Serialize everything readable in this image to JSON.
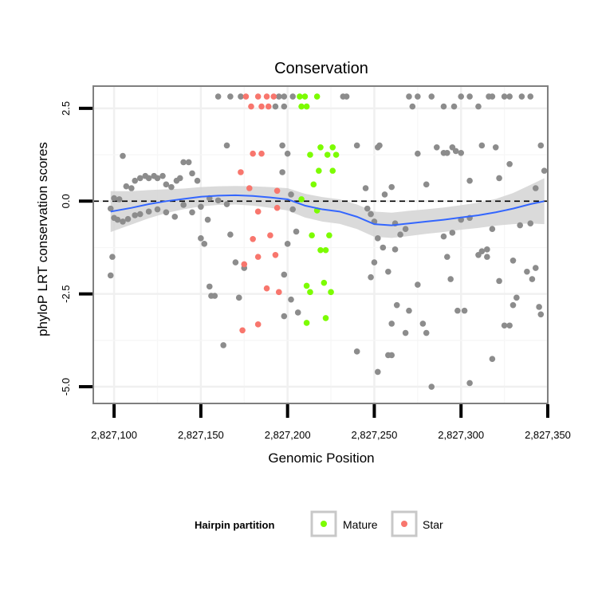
{
  "chart_data": {
    "type": "scatter",
    "title": "Conservation",
    "xlabel": "Genomic Position",
    "ylabel": "phyloP LRT conservation scores",
    "xlim": [
      2827088,
      2827350
    ],
    "ylim": [
      -5.45,
      3.1
    ],
    "x_ticks": [
      2827100,
      2827150,
      2827200,
      2827250,
      2827300,
      2827350
    ],
    "x_tick_labels": [
      "2,827,100",
      "2,827,150",
      "2,827,200",
      "2,827,250",
      "2,827,300",
      "2,827,350"
    ],
    "y_ticks": [
      -5,
      -2.5,
      0,
      2.5
    ],
    "y_tick_labels": [
      "-5.0",
      "-2.5",
      "0.0",
      "2.5"
    ],
    "reference_line_y": 0,
    "legend": {
      "title": "Hairpin partition",
      "position": "bottom",
      "entries": [
        {
          "label": "Mature",
          "color": "#7CFC00"
        },
        {
          "label": "Star",
          "color": "#F8766D"
        }
      ]
    },
    "colors": {
      "Other": "#8c8c8c",
      "Mature": "#7CFC00",
      "Star": "#F8766D",
      "smooth": "#3366FF",
      "band": "#d3d3d3"
    },
    "smooth": {
      "x": [
        2827098,
        2827110,
        2827120,
        2827130,
        2827140,
        2827150,
        2827160,
        2827170,
        2827180,
        2827190,
        2827200,
        2827210,
        2827220,
        2827230,
        2827240,
        2827250,
        2827260,
        2827270,
        2827280,
        2827290,
        2827300,
        2827310,
        2827320,
        2827330,
        2827340,
        2827348
      ],
      "y": [
        -0.28,
        -0.18,
        -0.08,
        0.0,
        0.06,
        0.12,
        0.15,
        0.16,
        0.14,
        0.1,
        0.05,
        -0.12,
        -0.22,
        -0.28,
        -0.42,
        -0.62,
        -0.65,
        -0.6,
        -0.55,
        -0.5,
        -0.44,
        -0.38,
        -0.3,
        -0.2,
        -0.08,
        0.0
      ],
      "se": [
        0.55,
        0.45,
        0.38,
        0.32,
        0.28,
        0.26,
        0.25,
        0.25,
        0.26,
        0.28,
        0.3,
        0.32,
        0.33,
        0.33,
        0.33,
        0.34,
        0.34,
        0.34,
        0.33,
        0.33,
        0.33,
        0.34,
        0.36,
        0.42,
        0.52,
        0.62
      ]
    },
    "series": [
      {
        "name": "Mature",
        "points": [
          [
            2827207,
            2.82
          ],
          [
            2827210,
            2.82
          ],
          [
            2827217,
            2.82
          ],
          [
            2827208,
            2.55
          ],
          [
            2827211,
            2.55
          ],
          [
            2827219,
            1.45
          ],
          [
            2827226,
            1.45
          ],
          [
            2827213,
            1.25
          ],
          [
            2827223,
            1.25
          ],
          [
            2827228,
            1.25
          ],
          [
            2827218,
            0.82
          ],
          [
            2827226,
            0.82
          ],
          [
            2827215,
            0.45
          ],
          [
            2827208,
            0.05
          ],
          [
            2827217,
            -0.25
          ],
          [
            2827214,
            -0.92
          ],
          [
            2827224,
            -0.92
          ],
          [
            2827219,
            -1.32
          ],
          [
            2827222,
            -1.32
          ],
          [
            2827211,
            -2.28
          ],
          [
            2827221,
            -2.2
          ],
          [
            2827213,
            -2.45
          ],
          [
            2827225,
            -2.45
          ],
          [
            2827222,
            -3.15
          ],
          [
            2827211,
            -3.28
          ]
        ]
      },
      {
        "name": "Star",
        "points": [
          [
            2827176,
            2.82
          ],
          [
            2827183,
            2.82
          ],
          [
            2827188,
            2.82
          ],
          [
            2827192,
            2.82
          ],
          [
            2827179,
            2.55
          ],
          [
            2827185,
            2.55
          ],
          [
            2827189,
            2.55
          ],
          [
            2827180,
            1.28
          ],
          [
            2827185,
            1.28
          ],
          [
            2827173,
            0.78
          ],
          [
            2827178,
            0.35
          ],
          [
            2827194,
            0.28
          ],
          [
            2827194,
            -0.18
          ],
          [
            2827183,
            -0.28
          ],
          [
            2827190,
            -0.92
          ],
          [
            2827180,
            -1.02
          ],
          [
            2827175,
            -1.7
          ],
          [
            2827183,
            -1.5
          ],
          [
            2827193,
            -1.45
          ],
          [
            2827188,
            -2.35
          ],
          [
            2827195,
            -2.45
          ],
          [
            2827174,
            -3.48
          ],
          [
            2827183,
            -3.32
          ]
        ]
      },
      {
        "name": "Other",
        "points": [
          [
            2827098,
            -0.2
          ],
          [
            2827100,
            -0.45
          ],
          [
            2827102,
            -0.5
          ],
          [
            2827105,
            -0.55
          ],
          [
            2827108,
            -0.48
          ],
          [
            2827112,
            -0.38
          ],
          [
            2827115,
            -0.35
          ],
          [
            2827120,
            -0.28
          ],
          [
            2827125,
            -0.22
          ],
          [
            2827130,
            -0.3
          ],
          [
            2827135,
            -0.42
          ],
          [
            2827140,
            -0.1
          ],
          [
            2827145,
            -0.3
          ],
          [
            2827150,
            -0.15
          ],
          [
            2827155,
            0.08
          ],
          [
            2827160,
            0.02
          ],
          [
            2827165,
            -0.08
          ],
          [
            2827098,
            -2.0
          ],
          [
            2827099,
            -1.5
          ],
          [
            2827100,
            0.08
          ],
          [
            2827103,
            0.05
          ],
          [
            2827105,
            1.22
          ],
          [
            2827107,
            0.4
          ],
          [
            2827110,
            0.35
          ],
          [
            2827112,
            0.55
          ],
          [
            2827115,
            0.62
          ],
          [
            2827118,
            0.68
          ],
          [
            2827120,
            0.62
          ],
          [
            2827123,
            0.68
          ],
          [
            2827125,
            0.62
          ],
          [
            2827128,
            0.68
          ],
          [
            2827130,
            0.45
          ],
          [
            2827133,
            0.38
          ],
          [
            2827136,
            0.55
          ],
          [
            2827138,
            0.62
          ],
          [
            2827140,
            1.05
          ],
          [
            2827143,
            1.05
          ],
          [
            2827145,
            0.75
          ],
          [
            2827148,
            0.55
          ],
          [
            2827150,
            -1.0
          ],
          [
            2827152,
            -1.15
          ],
          [
            2827154,
            -0.5
          ],
          [
            2827155,
            -2.3
          ],
          [
            2827156,
            -2.55
          ],
          [
            2827158,
            -2.55
          ],
          [
            2827163,
            -3.88
          ],
          [
            2827165,
            1.5
          ],
          [
            2827167,
            -0.9
          ],
          [
            2827170,
            -1.65
          ],
          [
            2827172,
            -2.6
          ],
          [
            2827175,
            -1.8
          ],
          [
            2827160,
            2.82
          ],
          [
            2827167,
            2.82
          ],
          [
            2827173,
            2.82
          ],
          [
            2827195,
            2.82
          ],
          [
            2827198,
            2.82
          ],
          [
            2827203,
            2.82
          ],
          [
            2827198,
            2.55
          ],
          [
            2827193,
            2.55
          ],
          [
            2827197,
            1.5
          ],
          [
            2827200,
            1.28
          ],
          [
            2827197,
            0.78
          ],
          [
            2827202,
            0.18
          ],
          [
            2827203,
            -0.22
          ],
          [
            2827205,
            -0.82
          ],
          [
            2827200,
            -1.15
          ],
          [
            2827198,
            -1.98
          ],
          [
            2827202,
            -2.65
          ],
          [
            2827198,
            -3.1
          ],
          [
            2827206,
            -3.0
          ],
          [
            2827232,
            2.82
          ],
          [
            2827234,
            2.82
          ],
          [
            2827240,
            1.5
          ],
          [
            2827245,
            0.35
          ],
          [
            2827248,
            -0.35
          ],
          [
            2827250,
            -0.55
          ],
          [
            2827252,
            -1.0
          ],
          [
            2827255,
            -1.25
          ],
          [
            2827250,
            -1.65
          ],
          [
            2827248,
            -2.05
          ],
          [
            2827240,
            -4.05
          ],
          [
            2827252,
            -4.6
          ],
          [
            2827258,
            -4.15
          ],
          [
            2827260,
            -4.15
          ],
          [
            2827253,
            1.5
          ],
          [
            2827256,
            0.18
          ],
          [
            2827260,
            0.38
          ],
          [
            2827262,
            -0.6
          ],
          [
            2827265,
            -0.9
          ],
          [
            2827268,
            -0.75
          ],
          [
            2827262,
            -1.3
          ],
          [
            2827258,
            -1.9
          ],
          [
            2827260,
            -3.3
          ],
          [
            2827263,
            -2.8
          ],
          [
            2827270,
            -2.95
          ],
          [
            2827268,
            -3.55
          ],
          [
            2827275,
            -2.25
          ],
          [
            2827278,
            -3.3
          ],
          [
            2827280,
            -3.55
          ],
          [
            2827283,
            -5.0
          ],
          [
            2827270,
            2.82
          ],
          [
            2827272,
            2.55
          ],
          [
            2827275,
            2.82
          ],
          [
            2827283,
            2.82
          ],
          [
            2827275,
            1.28
          ],
          [
            2827280,
            0.45
          ],
          [
            2827286,
            1.45
          ],
          [
            2827290,
            1.3
          ],
          [
            2827292,
            1.3
          ],
          [
            2827295,
            1.45
          ],
          [
            2827297,
            1.35
          ],
          [
            2827290,
            -0.95
          ],
          [
            2827292,
            -1.5
          ],
          [
            2827294,
            -2.1
          ],
          [
            2827298,
            -2.95
          ],
          [
            2827302,
            -2.95
          ],
          [
            2827295,
            -0.85
          ],
          [
            2827300,
            -0.5
          ],
          [
            2827305,
            -0.45
          ],
          [
            2827310,
            -1.45
          ],
          [
            2827312,
            -1.35
          ],
          [
            2827315,
            -1.5
          ],
          [
            2827318,
            -0.75
          ],
          [
            2827322,
            -2.15
          ],
          [
            2827325,
            -3.35
          ],
          [
            2827328,
            -3.35
          ],
          [
            2827330,
            -2.8
          ],
          [
            2827332,
            -2.6
          ],
          [
            2827330,
            -1.6
          ],
          [
            2827334,
            -0.65
          ],
          [
            2827338,
            -1.9
          ],
          [
            2827341,
            -2.1
          ],
          [
            2827343,
            -1.8
          ],
          [
            2827345,
            -2.85
          ],
          [
            2827346,
            -3.05
          ],
          [
            2827346,
            1.5
          ],
          [
            2827348,
            0.82
          ],
          [
            2827343,
            0.35
          ],
          [
            2827340,
            -0.6
          ],
          [
            2827340,
            2.82
          ],
          [
            2827335,
            2.82
          ],
          [
            2827328,
            2.82
          ],
          [
            2827325,
            2.82
          ],
          [
            2827318,
            2.82
          ],
          [
            2827316,
            2.82
          ],
          [
            2827305,
            2.82
          ],
          [
            2827300,
            2.82
          ],
          [
            2827296,
            2.55
          ],
          [
            2827290,
            2.55
          ],
          [
            2827310,
            2.55
          ],
          [
            2827312,
            1.5
          ],
          [
            2827320,
            1.45
          ],
          [
            2827300,
            1.3
          ],
          [
            2827328,
            1.0
          ],
          [
            2827305,
            0.55
          ],
          [
            2827322,
            0.62
          ],
          [
            2827315,
            -1.3
          ],
          [
            2827318,
            -4.25
          ],
          [
            2827305,
            -4.9
          ],
          [
            2827252,
            1.45
          ],
          [
            2827246,
            -0.2
          ]
        ]
      }
    ]
  }
}
